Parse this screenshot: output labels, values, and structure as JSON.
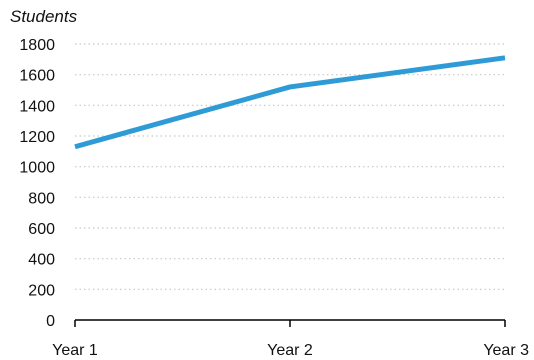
{
  "chart_data": {
    "type": "line",
    "title": "",
    "ylabel": "Students",
    "xlabel": "",
    "categories": [
      "Year 1",
      "Year 2",
      "Year 3"
    ],
    "series": [
      {
        "values": [
          1130,
          1520,
          1710
        ],
        "color": "#2e9bd6"
      }
    ],
    "ylim": [
      0,
      1800
    ],
    "yticks": [
      0,
      200,
      400,
      600,
      800,
      1000,
      1200,
      1400,
      1600,
      1800
    ],
    "grid": "horizontal-dotted",
    "legend": "none"
  }
}
